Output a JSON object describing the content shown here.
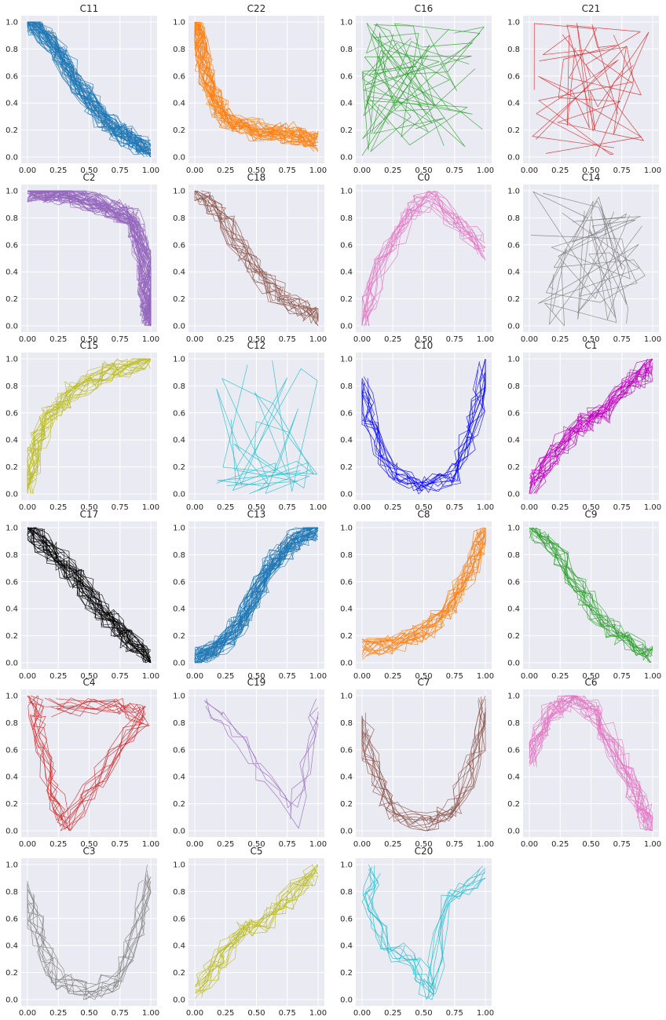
{
  "figure": {
    "layout": {
      "rows": 6,
      "cols": 4
    }
  },
  "chart_data": [
    {
      "type": "line",
      "title": "C11",
      "color": "#1f77b4",
      "xlim": [
        0,
        1
      ],
      "ylim": [
        0,
        1
      ],
      "xticks": [
        "0.00",
        "0.25",
        "0.50",
        "0.75",
        "1.00"
      ],
      "yticks": [
        "0.0",
        "0.2",
        "0.4",
        "0.6",
        "0.8",
        "1.0"
      ],
      "grid": true,
      "legend": "none",
      "n_lines": 40,
      "trend": "decreasing",
      "series_seed": 11
    },
    {
      "type": "line",
      "title": "C22",
      "color": "#ff7f0e",
      "xlim": [
        0,
        1
      ],
      "ylim": [
        0,
        1
      ],
      "xticks": [
        "0.00",
        "0.25",
        "0.50",
        "0.75",
        "1.00"
      ],
      "yticks": [
        "0.0",
        "0.2",
        "0.4",
        "0.6",
        "0.8",
        "1.0"
      ],
      "grid": true,
      "legend": "none",
      "n_lines": 30,
      "trend": "l-drop",
      "series_seed": 22
    },
    {
      "type": "line",
      "title": "C16",
      "color": "#2ca02c",
      "xlim": [
        0,
        1
      ],
      "ylim": [
        0,
        1
      ],
      "xticks": [
        "0.00",
        "0.25",
        "0.50",
        "0.75",
        "1.00"
      ],
      "yticks": [
        "0.0",
        "0.2",
        "0.4",
        "0.6",
        "0.8",
        "1.0"
      ],
      "grid": true,
      "legend": "none",
      "n_lines": 10,
      "trend": "scattered-left",
      "series_seed": 16
    },
    {
      "type": "line",
      "title": "C21",
      "color": "#d62728",
      "xlim": [
        0,
        1
      ],
      "ylim": [
        0,
        1
      ],
      "xticks": [
        "0.00",
        "0.25",
        "0.50",
        "0.75",
        "1.00"
      ],
      "yticks": [
        "0.0",
        "0.2",
        "0.4",
        "0.6",
        "0.8",
        "1.0"
      ],
      "grid": true,
      "legend": "none",
      "n_lines": 6,
      "trend": "scattered",
      "series_seed": 21
    },
    {
      "type": "line",
      "title": "C2",
      "color": "#9467bd",
      "xlim": [
        0,
        1
      ],
      "ylim": [
        0,
        1
      ],
      "xticks": [
        "0.00",
        "0.25",
        "0.50",
        "0.75",
        "1.00"
      ],
      "yticks": [
        "0.0",
        "0.2",
        "0.4",
        "0.6",
        "0.8",
        "1.0"
      ],
      "grid": true,
      "legend": "none",
      "n_lines": 45,
      "trend": "top-right-corner",
      "series_seed": 2
    },
    {
      "type": "line",
      "title": "C18",
      "color": "#8c564b",
      "xlim": [
        0,
        1
      ],
      "ylim": [
        0,
        1
      ],
      "xticks": [
        "0.00",
        "0.25",
        "0.50",
        "0.75",
        "1.00"
      ],
      "yticks": [
        "0.0",
        "0.2",
        "0.4",
        "0.6",
        "0.8",
        "1.0"
      ],
      "grid": true,
      "legend": "none",
      "n_lines": 15,
      "trend": "decreasing",
      "series_seed": 18
    },
    {
      "type": "line",
      "title": "C0",
      "color": "#e377c2",
      "xlim": [
        0,
        1
      ],
      "ylim": [
        0,
        1
      ],
      "xticks": [
        "0.00",
        "0.25",
        "0.50",
        "0.75",
        "1.00"
      ],
      "yticks": [
        "0.0",
        "0.2",
        "0.4",
        "0.6",
        "0.8",
        "1.0"
      ],
      "grid": true,
      "legend": "none",
      "n_lines": 15,
      "trend": "hump",
      "series_seed": 0
    },
    {
      "type": "line",
      "title": "C14",
      "color": "#7f7f7f",
      "xlim": [
        0,
        1
      ],
      "ylim": [
        0,
        1
      ],
      "xticks": [
        "0.00",
        "0.25",
        "0.50",
        "0.75",
        "1.00"
      ],
      "yticks": [
        "0.0",
        "0.2",
        "0.4",
        "0.6",
        "0.8",
        "1.0"
      ],
      "grid": true,
      "legend": "none",
      "n_lines": 8,
      "trend": "scattered",
      "series_seed": 14
    },
    {
      "type": "line",
      "title": "C15",
      "color": "#bcbd22",
      "xlim": [
        0,
        1
      ],
      "ylim": [
        0,
        1
      ],
      "xticks": [
        "0.00",
        "0.25",
        "0.50",
        "0.75",
        "1.00"
      ],
      "yticks": [
        "0.0",
        "0.2",
        "0.4",
        "0.6",
        "0.8",
        "1.0"
      ],
      "grid": true,
      "legend": "none",
      "n_lines": 20,
      "trend": "concave-rise",
      "series_seed": 15
    },
    {
      "type": "line",
      "title": "C12",
      "color": "#17becf",
      "xlim": [
        0,
        1
      ],
      "ylim": [
        0,
        1
      ],
      "xticks": [
        "0.00",
        "0.25",
        "0.50",
        "0.75",
        "1.00"
      ],
      "yticks": [
        "0.0",
        "0.2",
        "0.4",
        "0.6",
        "0.8",
        "1.0"
      ],
      "grid": true,
      "legend": "none",
      "n_lines": 6,
      "trend": "scattered-low",
      "series_seed": 12
    },
    {
      "type": "line",
      "title": "C10",
      "color": "#0000ff",
      "xlim": [
        0,
        1
      ],
      "ylim": [
        0,
        1
      ],
      "xticks": [
        "0.00",
        "0.25",
        "0.50",
        "0.75",
        "1.00"
      ],
      "yticks": [
        "0.0",
        "0.2",
        "0.4",
        "0.6",
        "0.8",
        "1.0"
      ],
      "grid": true,
      "legend": "none",
      "n_lines": 12,
      "trend": "u-shape",
      "series_seed": 10
    },
    {
      "type": "line",
      "title": "C1",
      "color": "#bf00bf",
      "xlim": [
        0,
        1
      ],
      "ylim": [
        0,
        1
      ],
      "xticks": [
        "0.00",
        "0.25",
        "0.50",
        "0.75",
        "1.00"
      ],
      "yticks": [
        "0.0",
        "0.2",
        "0.4",
        "0.6",
        "0.8",
        "1.0"
      ],
      "grid": true,
      "legend": "none",
      "n_lines": 20,
      "trend": "increasing",
      "series_seed": 1
    },
    {
      "type": "line",
      "title": "C17",
      "color": "#000000",
      "xlim": [
        0,
        1
      ],
      "ylim": [
        0,
        1
      ],
      "xticks": [
        "0.00",
        "0.25",
        "0.50",
        "0.75",
        "1.00"
      ],
      "yticks": [
        "0.0",
        "0.2",
        "0.4",
        "0.6",
        "0.8",
        "1.0"
      ],
      "grid": true,
      "legend": "none",
      "n_lines": 25,
      "trend": "decreasing-linear",
      "series_seed": 17
    },
    {
      "type": "line",
      "title": "C13",
      "color": "#1f77b4",
      "xlim": [
        0,
        1
      ],
      "ylim": [
        0,
        1
      ],
      "xticks": [
        "0.00",
        "0.25",
        "0.50",
        "0.75",
        "1.00"
      ],
      "yticks": [
        "0.0",
        "0.2",
        "0.4",
        "0.6",
        "0.8",
        "1.0"
      ],
      "grid": true,
      "legend": "none",
      "n_lines": 40,
      "trend": "increasing-s",
      "series_seed": 13
    },
    {
      "type": "line",
      "title": "C8",
      "color": "#ff7f0e",
      "xlim": [
        0,
        1
      ],
      "ylim": [
        0,
        1
      ],
      "xticks": [
        "0.00",
        "0.25",
        "0.50",
        "0.75",
        "1.00"
      ],
      "yticks": [
        "0.0",
        "0.2",
        "0.4",
        "0.6",
        "0.8",
        "1.0"
      ],
      "grid": true,
      "legend": "none",
      "n_lines": 20,
      "trend": "convex-rise",
      "series_seed": 8
    },
    {
      "type": "line",
      "title": "C9",
      "color": "#2ca02c",
      "xlim": [
        0,
        1
      ],
      "ylim": [
        0,
        1
      ],
      "xticks": [
        "0.00",
        "0.25",
        "0.50",
        "0.75",
        "1.00"
      ],
      "yticks": [
        "0.0",
        "0.2",
        "0.4",
        "0.6",
        "0.8",
        "1.0"
      ],
      "grid": true,
      "legend": "none",
      "n_lines": 15,
      "trend": "decreasing",
      "series_seed": 9
    },
    {
      "type": "line",
      "title": "C4",
      "color": "#d62728",
      "xlim": [
        0,
        1
      ],
      "ylim": [
        0,
        1
      ],
      "xticks": [
        "0.00",
        "0.25",
        "0.50",
        "0.75",
        "1.00"
      ],
      "yticks": [
        "0.0",
        "0.2",
        "0.4",
        "0.6",
        "0.8",
        "1.0"
      ],
      "grid": true,
      "legend": "none",
      "n_lines": 10,
      "trend": "loop",
      "series_seed": 4
    },
    {
      "type": "line",
      "title": "C19",
      "color": "#9467bd",
      "xlim": [
        0,
        1
      ],
      "ylim": [
        0,
        1
      ],
      "xticks": [
        "0.00",
        "0.25",
        "0.50",
        "0.75",
        "1.00"
      ],
      "yticks": [
        "0.0",
        "0.2",
        "0.4",
        "0.6",
        "0.8",
        "1.0"
      ],
      "grid": true,
      "legend": "none",
      "n_lines": 4,
      "trend": "v-shape",
      "series_seed": 19
    },
    {
      "type": "line",
      "title": "C7",
      "color": "#8c564b",
      "xlim": [
        0,
        1
      ],
      "ylim": [
        0,
        1
      ],
      "xticks": [
        "0.00",
        "0.25",
        "0.50",
        "0.75",
        "1.00"
      ],
      "yticks": [
        "0.0",
        "0.2",
        "0.4",
        "0.6",
        "0.8",
        "1.0"
      ],
      "grid": true,
      "legend": "none",
      "n_lines": 12,
      "trend": "u-shape",
      "series_seed": 7
    },
    {
      "type": "line",
      "title": "C6",
      "color": "#e377c2",
      "xlim": [
        0,
        1
      ],
      "ylim": [
        0,
        1
      ],
      "xticks": [
        "0.00",
        "0.25",
        "0.50",
        "0.75",
        "1.00"
      ],
      "yticks": [
        "0.0",
        "0.2",
        "0.4",
        "0.6",
        "0.8",
        "1.0"
      ],
      "grid": true,
      "legend": "none",
      "n_lines": 20,
      "trend": "hump-early",
      "series_seed": 6
    },
    {
      "type": "line",
      "title": "C3",
      "color": "#7f7f7f",
      "xlim": [
        0,
        1
      ],
      "ylim": [
        0,
        1
      ],
      "xticks": [
        "0.00",
        "0.25",
        "0.50",
        "0.75",
        "1.00"
      ],
      "yticks": [
        "0.0",
        "0.2",
        "0.4",
        "0.6",
        "0.8",
        "1.0"
      ],
      "grid": true,
      "legend": "none",
      "n_lines": 10,
      "trend": "u-shape",
      "series_seed": 3
    },
    {
      "type": "line",
      "title": "C5",
      "color": "#bcbd22",
      "xlim": [
        0,
        1
      ],
      "ylim": [
        0,
        1
      ],
      "xticks": [
        "0.00",
        "0.25",
        "0.50",
        "0.75",
        "1.00"
      ],
      "yticks": [
        "0.0",
        "0.2",
        "0.4",
        "0.6",
        "0.8",
        "1.0"
      ],
      "grid": true,
      "legend": "none",
      "n_lines": 15,
      "trend": "increasing",
      "series_seed": 5
    },
    {
      "type": "line",
      "title": "C20",
      "color": "#17becf",
      "xlim": [
        0,
        1
      ],
      "ylim": [
        0,
        1
      ],
      "xticks": [
        "0.00",
        "0.25",
        "0.50",
        "0.75",
        "1.00"
      ],
      "yticks": [
        "0.0",
        "0.2",
        "0.4",
        "0.6",
        "0.8",
        "1.0"
      ],
      "grid": true,
      "legend": "none",
      "n_lines": 8,
      "trend": "v-shape-left",
      "series_seed": 20
    }
  ]
}
